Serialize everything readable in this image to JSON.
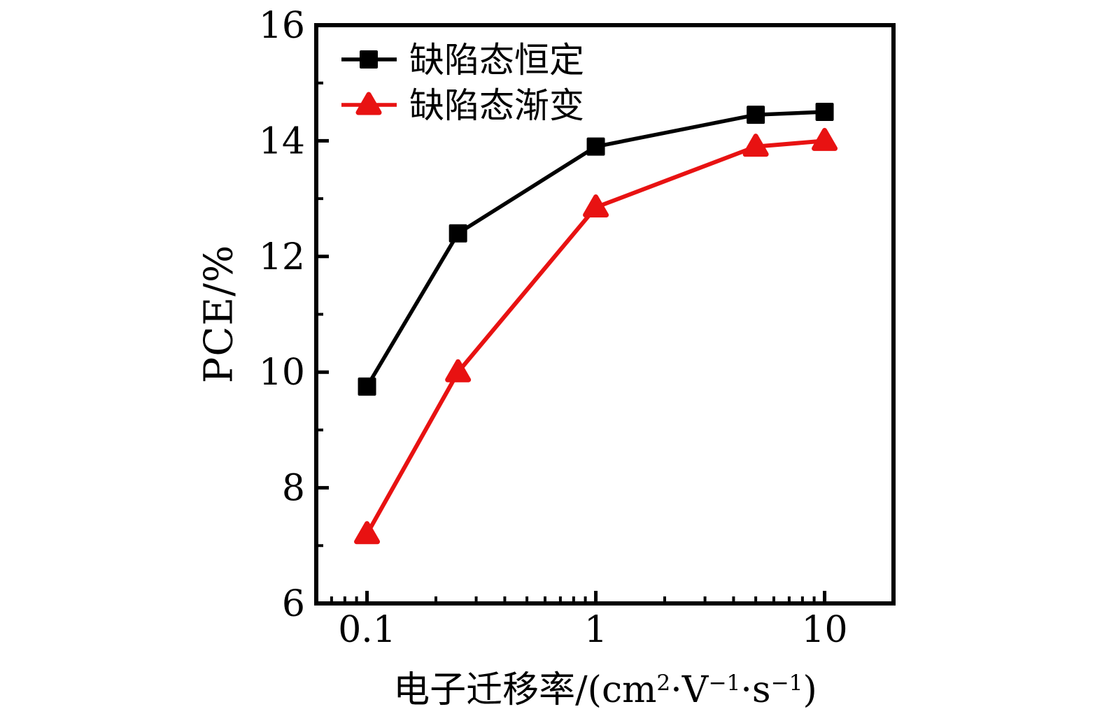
{
  "chart_data": {
    "type": "line",
    "title": "",
    "xlabel_segments": [
      {
        "t": "电子迁移率/(cm"
      },
      {
        "t": "2",
        "sup": true
      },
      {
        "t": "·V"
      },
      {
        "t": "−1",
        "sup": true
      },
      {
        "t": "·s"
      },
      {
        "t": "−1",
        "sup": true
      },
      {
        "t": ")"
      }
    ],
    "ylabel": "PCE/%",
    "xscale": "log",
    "xlim": [
      0.06,
      20
    ],
    "ylim": [
      6,
      16
    ],
    "grid": false,
    "legend_position": "top-left",
    "x": [
      0.1,
      0.25,
      1,
      5,
      10
    ],
    "series": [
      {
        "name": "缺陷态恒定",
        "marker": "square",
        "color": "#000000",
        "values": [
          9.75,
          12.4,
          13.9,
          14.45,
          14.5
        ]
      },
      {
        "name": "缺陷态渐变",
        "marker": "triangle",
        "color": "#e81212",
        "values": [
          7.2,
          10.0,
          12.85,
          13.9,
          14.0
        ]
      }
    ],
    "x_major_ticks": [
      {
        "v": 0.1,
        "label": "0.1"
      },
      {
        "v": 1,
        "label": "1"
      },
      {
        "v": 10,
        "label": "10"
      }
    ],
    "x_minor_ticks": [
      0.07,
      0.08,
      0.09,
      0.2,
      0.3,
      0.4,
      0.5,
      0.6,
      0.7,
      0.8,
      0.9,
      2,
      3,
      4,
      5,
      6,
      7,
      8,
      9
    ],
    "y_major_ticks": [
      {
        "v": 6,
        "label": "6"
      },
      {
        "v": 8,
        "label": "8"
      },
      {
        "v": 10,
        "label": "10"
      },
      {
        "v": 12,
        "label": "12"
      },
      {
        "v": 14,
        "label": "14"
      },
      {
        "v": 16,
        "label": "16"
      }
    ],
    "y_minor_ticks": [
      7,
      9,
      11,
      13,
      15
    ],
    "axis_color": "#000000",
    "background_color": "#ffffff"
  }
}
